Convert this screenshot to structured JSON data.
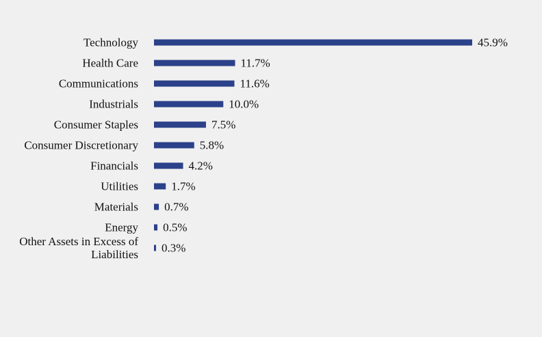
{
  "chart_data": {
    "type": "bar",
    "orientation": "horizontal",
    "title": "",
    "xlabel": "",
    "ylabel": "",
    "categories": [
      "Technology",
      "Health Care",
      "Communications",
      "Industrials",
      "Consumer Staples",
      "Consumer Discretionary",
      "Financials",
      "Utilities",
      "Materials",
      "Energy",
      "Other Assets in Excess of Liabilities"
    ],
    "category_lines": [
      [
        "Technology"
      ],
      [
        "Health Care"
      ],
      [
        "Communications"
      ],
      [
        "Industrials"
      ],
      [
        "Consumer Staples"
      ],
      [
        "Consumer Discretionary"
      ],
      [
        "Financials"
      ],
      [
        "Utilities"
      ],
      [
        "Materials"
      ],
      [
        "Energy"
      ],
      [
        "Other Assets in Excess of",
        "Liabilities"
      ]
    ],
    "values": [
      45.9,
      11.7,
      11.6,
      10.0,
      7.5,
      5.8,
      4.2,
      1.7,
      0.7,
      0.5,
      0.3
    ],
    "value_labels": [
      "45.9%",
      "11.7%",
      "11.6%",
      "10.0%",
      "7.5%",
      "5.8%",
      "4.2%",
      "1.7%",
      "0.7%",
      "0.5%",
      "0.3%"
    ],
    "value_unit": "%",
    "xlim": [
      0,
      45.9
    ],
    "grid": false,
    "legend": "none",
    "bar_color": "#2b4189",
    "background_color": "#f0f0f0"
  }
}
